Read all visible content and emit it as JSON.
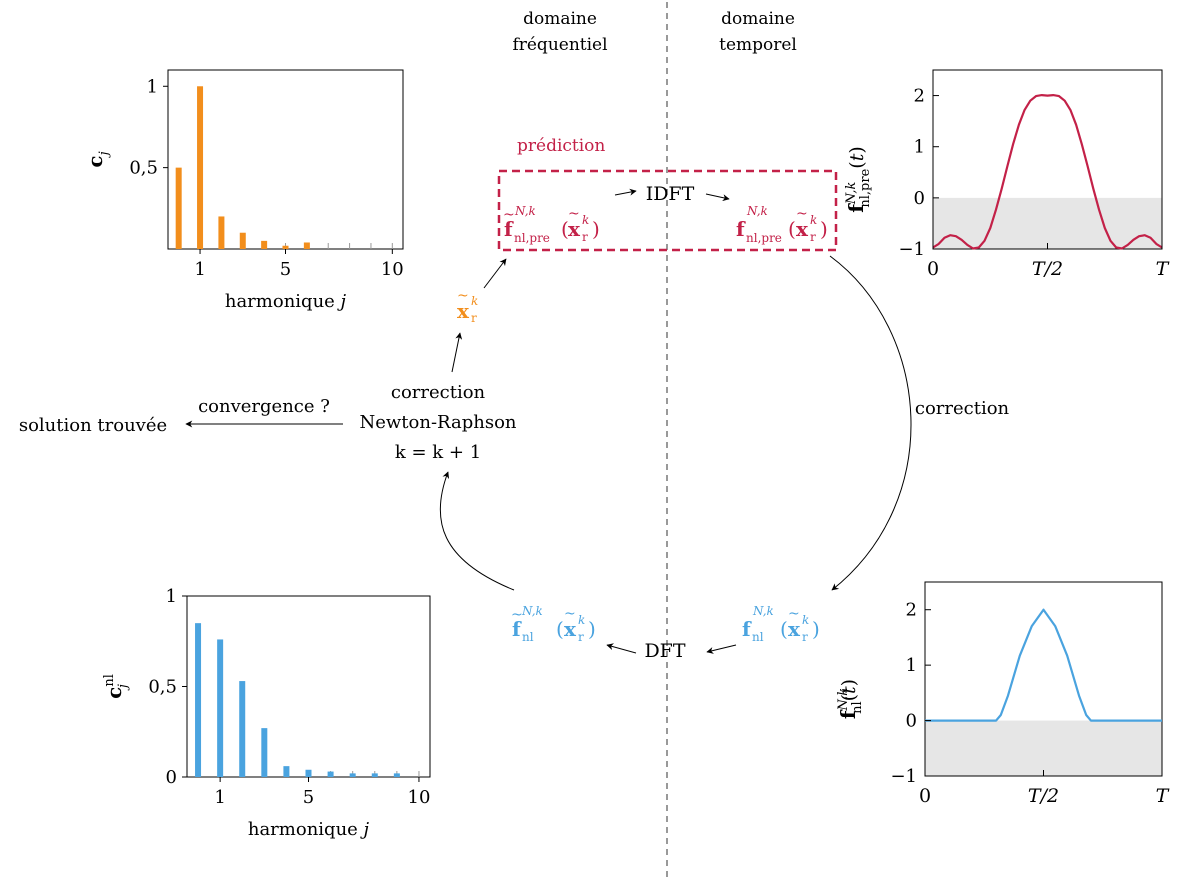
{
  "header": {
    "frequency_domain": [
      "domaine",
      "fréquentiel"
    ],
    "time_domain": [
      "domaine",
      "temporel"
    ]
  },
  "cycle": {
    "prediction_label": "prédiction",
    "idft_label": "IDFT",
    "dft_label": "DFT",
    "correction_label": "correction",
    "newton_block": [
      "correction",
      "Newton-Raphson",
      "k = k + 1"
    ],
    "convergence_label": "convergence ?",
    "solution_label": "solution trouvée"
  },
  "symbols": {
    "f_tilde_pre": {
      "base": "f",
      "sup": "N,k",
      "sub": "nl,pre",
      "arg_base": "x",
      "arg_sup": "k",
      "arg_sub": "r",
      "tilde": true
    },
    "f_pre": {
      "base": "f",
      "sup": "N,k",
      "sub": "nl,pre",
      "arg_base": "x",
      "arg_sup": "k",
      "arg_sub": "r",
      "tilde": false
    },
    "x_tilde": {
      "base": "x",
      "sup": "k",
      "sub": "r"
    },
    "f_tilde_nl": {
      "base": "f",
      "sup": "N,k",
      "sub": "nl",
      "arg_base": "x",
      "arg_sup": "k",
      "arg_sub": "r",
      "tilde": true
    },
    "f_nl": {
      "base": "f",
      "sup": "N,k",
      "sub": "nl",
      "arg_base": "x",
      "arg_sup": "k",
      "arg_sub": "r",
      "tilde": false
    }
  },
  "colors": {
    "orange": "#f28e1c",
    "crimson": "#c32148",
    "blue": "#4aa3df",
    "dashed_box": "#c32148",
    "shade": "#e6e6e6"
  },
  "chart_data": [
    {
      "id": "c_top_left",
      "type": "bar",
      "color": "orange",
      "xlabel": "harmonique j",
      "ylabel": "c_j",
      "ylabel_sub": "j",
      "ylabel_sup": "",
      "xlim": [
        -0.5,
        10.5
      ],
      "ylim": [
        0,
        1.1
      ],
      "xticks": [
        1,
        5,
        10
      ],
      "yticks": [
        0.5,
        1
      ],
      "ytick_labels": [
        "0,5",
        "1"
      ],
      "x": [
        0,
        1,
        2,
        3,
        4,
        5,
        6,
        7,
        8,
        9,
        10
      ],
      "values": [
        0.5,
        1.0,
        0.2,
        0.1,
        0.05,
        0.02,
        0.04,
        0.0,
        0.0,
        0.0,
        0.0
      ]
    },
    {
      "id": "c_bottom_left",
      "type": "bar",
      "color": "blue",
      "xlabel": "harmonique j",
      "ylabel": "c_j^nl",
      "ylabel_sub": "j",
      "ylabel_sup": "nl",
      "xlim": [
        -0.5,
        10.5
      ],
      "ylim": [
        0,
        1
      ],
      "xticks": [
        1,
        5,
        10
      ],
      "yticks": [
        0,
        0.5,
        1
      ],
      "ytick_labels": [
        "0",
        "0,5",
        "1"
      ],
      "x": [
        0,
        1,
        2,
        3,
        4,
        5,
        6,
        7,
        8,
        9,
        10
      ],
      "values": [
        0.85,
        0.76,
        0.53,
        0.27,
        0.06,
        0.04,
        0.03,
        0.02,
        0.02,
        0.02,
        0.0
      ]
    },
    {
      "id": "f_top_right",
      "type": "line",
      "color": "crimson",
      "ylabel": "f_nl,pre^N,k(t)",
      "ylabel_sub": "nl,pre",
      "ylabel_sup": "N,k",
      "xlim": [
        0,
        1
      ],
      "ylim": [
        -1,
        2.5
      ],
      "xticks": [
        0,
        0.5,
        1
      ],
      "xtick_labels": [
        "0",
        "T/2",
        "T"
      ],
      "yticks": [
        -1,
        0,
        1,
        2
      ],
      "ytick_labels": [
        "−1",
        "0",
        "1",
        "2"
      ],
      "x": [
        0,
        0.025,
        0.05,
        0.075,
        0.1,
        0.125,
        0.15,
        0.175,
        0.2,
        0.225,
        0.25,
        0.275,
        0.3,
        0.325,
        0.35,
        0.375,
        0.4,
        0.425,
        0.45,
        0.475,
        0.5,
        0.525,
        0.55,
        0.575,
        0.6,
        0.625,
        0.65,
        0.675,
        0.7,
        0.725,
        0.75,
        0.775,
        0.8,
        0.825,
        0.85,
        0.875,
        0.9,
        0.925,
        0.95,
        0.975,
        1
      ],
      "y": [
        -0.97,
        -0.9,
        -0.78,
        -0.73,
        -0.75,
        -0.82,
        -0.92,
        -0.99,
        -0.97,
        -0.84,
        -0.59,
        -0.23,
        0.18,
        0.62,
        1.05,
        1.43,
        1.72,
        1.9,
        1.99,
        2.01,
        2.0,
        2.01,
        1.99,
        1.9,
        1.72,
        1.43,
        1.05,
        0.62,
        0.18,
        -0.23,
        -0.59,
        -0.84,
        -0.97,
        -0.99,
        -0.92,
        -0.82,
        -0.75,
        -0.73,
        -0.78,
        -0.9,
        -0.97
      ]
    },
    {
      "id": "f_bottom_right",
      "type": "line",
      "color": "blue",
      "ylabel": "f_nl^N,k(t)",
      "ylabel_sub": "nl",
      "ylabel_sup": "N,k",
      "xlim": [
        0,
        1
      ],
      "ylim": [
        -1,
        2.5
      ],
      "xticks": [
        0,
        0.5,
        1
      ],
      "xtick_labels": [
        "0",
        "T/2",
        "T"
      ],
      "yticks": [
        -1,
        0,
        1,
        2
      ],
      "ytick_labels": [
        "−1",
        "0",
        "1",
        "2"
      ],
      "x": [
        0,
        0.1,
        0.2,
        0.3,
        0.32,
        0.35,
        0.4,
        0.45,
        0.5,
        0.55,
        0.6,
        0.65,
        0.68,
        0.7,
        0.8,
        0.9,
        1
      ],
      "y": [
        0,
        0,
        0,
        0,
        0.1,
        0.45,
        1.17,
        1.7,
        2.0,
        1.7,
        1.17,
        0.45,
        0.1,
        0,
        0,
        0,
        0
      ]
    }
  ]
}
